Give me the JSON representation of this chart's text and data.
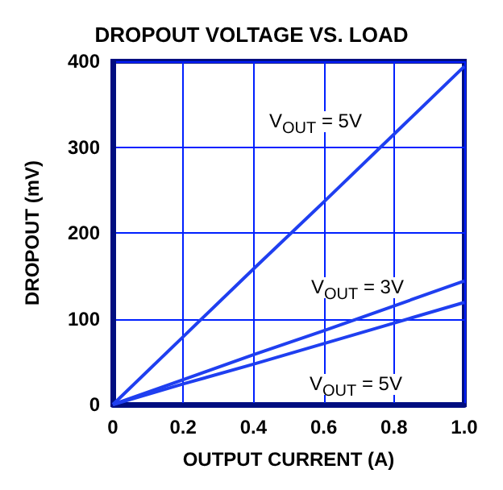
{
  "chart_data": {
    "type": "line",
    "title": "DROPOUT VOLTAGE VS. LOAD",
    "xlabel": "OUTPUT CURRENT (A)",
    "ylabel": "DROPOUT (mV)",
    "x": [
      0,
      0.2,
      0.4,
      0.6,
      0.8,
      1.0
    ],
    "series": [
      {
        "color": "#1f3ff0",
        "values": [
          0,
          79,
          158,
          236,
          315,
          394
        ]
      },
      {
        "color": "#1f3ff0",
        "values": [
          0,
          29,
          58,
          86,
          115,
          144
        ]
      },
      {
        "color": "#1f3ff0",
        "values": [
          0,
          24,
          47,
          71,
          95,
          119
        ]
      }
    ],
    "xlim": [
      0,
      1.0
    ],
    "xticks": [
      0,
      0.2,
      0.4,
      0.6,
      0.8,
      {
        "value": 1.0,
        "label": "1.0"
      }
    ],
    "ylim": [
      0,
      400
    ],
    "yticks": [
      0,
      100,
      200,
      300,
      400
    ],
    "grid": true,
    "marker": "none",
    "line_style": "solid",
    "annotations": [
      "V$_{OUT}$ = 5V",
      "V$_{OUT}$ = 3V",
      "V$_{OUT}$ = 5V"
    ]
  }
}
